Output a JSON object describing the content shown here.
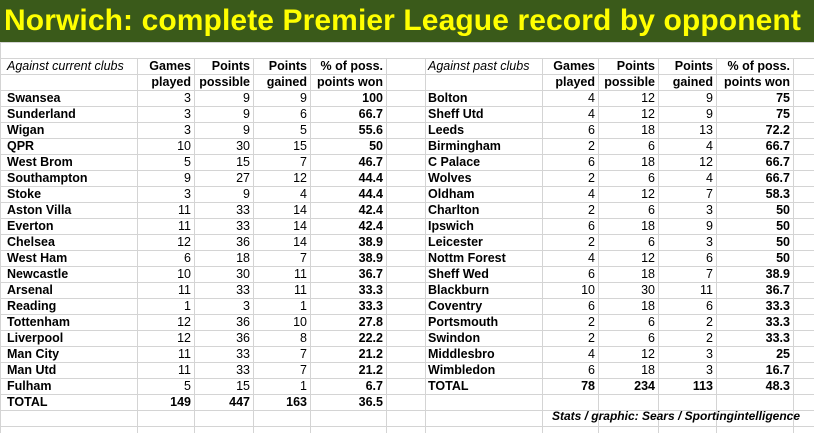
{
  "title": "Norwich: complete Premier League record by opponent",
  "credit": "Stats / graphic: Sears / Sportingintelligence",
  "current": {
    "label": "Against current clubs",
    "headers": [
      [
        "Games",
        "played"
      ],
      [
        "Points",
        "possible"
      ],
      [
        "Points",
        "gained"
      ],
      [
        "% of poss.",
        "points won"
      ]
    ],
    "rows": [
      [
        "Swansea",
        "3",
        "9",
        "9",
        "100"
      ],
      [
        "Sunderland",
        "3",
        "9",
        "6",
        "66.7"
      ],
      [
        "Wigan",
        "3",
        "9",
        "5",
        "55.6"
      ],
      [
        "QPR",
        "10",
        "30",
        "15",
        "50"
      ],
      [
        "West Brom",
        "5",
        "15",
        "7",
        "46.7"
      ],
      [
        "Southampton",
        "9",
        "27",
        "12",
        "44.4"
      ],
      [
        "Stoke",
        "3",
        "9",
        "4",
        "44.4"
      ],
      [
        "Aston Villa",
        "11",
        "33",
        "14",
        "42.4"
      ],
      [
        "Everton",
        "11",
        "33",
        "14",
        "42.4"
      ],
      [
        "Chelsea",
        "12",
        "36",
        "14",
        "38.9"
      ],
      [
        "West Ham",
        "6",
        "18",
        "7",
        "38.9"
      ],
      [
        "Newcastle",
        "10",
        "30",
        "11",
        "36.7"
      ],
      [
        "Arsenal",
        "11",
        "33",
        "11",
        "33.3"
      ],
      [
        "Reading",
        "1",
        "3",
        "1",
        "33.3"
      ],
      [
        "Tottenham",
        "12",
        "36",
        "10",
        "27.8"
      ],
      [
        "Liverpool",
        "12",
        "36",
        "8",
        "22.2"
      ],
      [
        "Man City",
        "11",
        "33",
        "7",
        "21.2"
      ],
      [
        "Man Utd",
        "11",
        "33",
        "7",
        "21.2"
      ],
      [
        "Fulham",
        "5",
        "15",
        "1",
        "6.7"
      ]
    ],
    "total": [
      "TOTAL",
      "149",
      "447",
      "163",
      "36.5"
    ]
  },
  "past": {
    "label": "Against past clubs",
    "headers": [
      [
        "Games",
        "played"
      ],
      [
        "Points",
        "possible"
      ],
      [
        "Points",
        "gained"
      ],
      [
        "% of poss.",
        "points won"
      ]
    ],
    "rows": [
      [
        "Bolton",
        "4",
        "12",
        "9",
        "75"
      ],
      [
        "Sheff Utd",
        "4",
        "12",
        "9",
        "75"
      ],
      [
        "Leeds",
        "6",
        "18",
        "13",
        "72.2"
      ],
      [
        "Birmingham",
        "2",
        "6",
        "4",
        "66.7"
      ],
      [
        "C Palace",
        "6",
        "18",
        "12",
        "66.7"
      ],
      [
        "Wolves",
        "2",
        "6",
        "4",
        "66.7"
      ],
      [
        "Oldham",
        "4",
        "12",
        "7",
        "58.3"
      ],
      [
        "Charlton",
        "2",
        "6",
        "3",
        "50"
      ],
      [
        "Ipswich",
        "6",
        "18",
        "9",
        "50"
      ],
      [
        "Leicester",
        "2",
        "6",
        "3",
        "50"
      ],
      [
        "Nottm Forest",
        "4",
        "12",
        "6",
        "50"
      ],
      [
        "Sheff Wed",
        "6",
        "18",
        "7",
        "38.9"
      ],
      [
        "Blackburn",
        "10",
        "30",
        "11",
        "36.7"
      ],
      [
        "Coventry",
        "6",
        "18",
        "6",
        "33.3"
      ],
      [
        "Portsmouth",
        "2",
        "6",
        "2",
        "33.3"
      ],
      [
        "Swindon",
        "2",
        "6",
        "2",
        "33.3"
      ],
      [
        "Middlesbro",
        "4",
        "12",
        "3",
        "25"
      ],
      [
        "Wimbledon",
        "6",
        "18",
        "3",
        "16.7"
      ]
    ],
    "total": [
      "TOTAL",
      "78",
      "234",
      "113",
      "48.3"
    ]
  }
}
